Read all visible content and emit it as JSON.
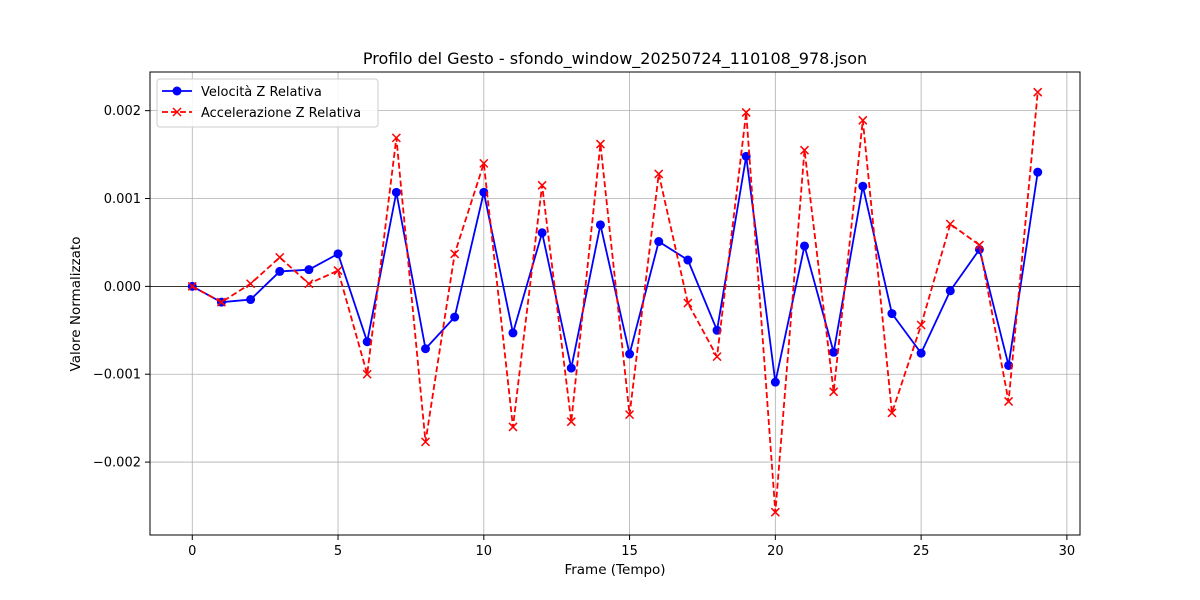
{
  "chart_data": {
    "type": "line",
    "title": "Profilo del Gesto - sfondo_window_20250724_110108_978.json",
    "xlabel": "Frame (Tempo)",
    "ylabel": "Valore Normalizzato",
    "xlim": [
      -1.45,
      30.45
    ],
    "ylim": [
      -0.00283,
      0.00244
    ],
    "x_ticks": [
      0,
      5,
      10,
      15,
      20,
      25,
      30
    ],
    "y_ticks": [
      -0.002,
      -0.001,
      0.0,
      0.001,
      0.002
    ],
    "y_tick_labels": [
      "−0.002",
      "−0.001",
      "0.000",
      "0.001",
      "0.002"
    ],
    "grid": true,
    "zero_line": true,
    "legend_position": "upper-left",
    "x": [
      0,
      1,
      2,
      3,
      4,
      5,
      6,
      7,
      8,
      9,
      10,
      11,
      12,
      13,
      14,
      15,
      16,
      17,
      18,
      19,
      20,
      21,
      22,
      23,
      24,
      25,
      26,
      27,
      28,
      29
    ],
    "series": [
      {
        "name": "Velocità Z Relativa",
        "color": "#0000ff",
        "style": "solid",
        "marker": "circle",
        "values": [
          0.0,
          -0.00018,
          -0.00015,
          0.00017,
          0.00019,
          0.00037,
          -0.00063,
          0.00107,
          -0.00071,
          -0.00035,
          0.00107,
          -0.00053,
          0.00061,
          -0.00093,
          0.0007,
          -0.00077,
          0.00051,
          0.0003,
          -0.0005,
          0.00148,
          -0.00109,
          0.00046,
          -0.00075,
          0.00114,
          -0.00031,
          -0.00076,
          -5e-05,
          0.00042,
          -0.0009,
          0.0013
        ]
      },
      {
        "name": "Accelerazione Z Relativa",
        "color": "#ff0000",
        "style": "dashed",
        "marker": "x",
        "values": [
          0.0,
          -0.00018,
          3e-05,
          0.00033,
          3e-05,
          0.00018,
          -0.001,
          0.00169,
          -0.00177,
          0.00037,
          0.0014,
          -0.0016,
          0.00115,
          -0.00154,
          0.00162,
          -0.00146,
          0.00128,
          -0.00019,
          -0.0008,
          0.00198,
          -0.00257,
          0.00155,
          -0.0012,
          0.00189,
          -0.00144,
          -0.00044,
          0.00071,
          0.00047,
          -0.00131,
          0.00221
        ]
      }
    ]
  }
}
